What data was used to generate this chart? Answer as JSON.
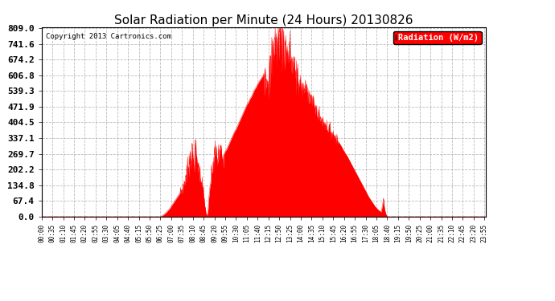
{
  "title": "Solar Radiation per Minute (24 Hours) 20130826",
  "copyright_text": "Copyright 2013 Cartronics.com",
  "legend_label": "Radiation (W/m2)",
  "background_color": "#ffffff",
  "plot_bg_color": "#ffffff",
  "fill_color": "#ff0000",
  "line_color": "#ff0000",
  "grid_color": "#aaaaaa",
  "dashed_line_color": "#ff0000",
  "yticks": [
    0.0,
    67.4,
    134.8,
    202.2,
    269.7,
    337.1,
    404.5,
    471.9,
    539.3,
    606.8,
    674.2,
    741.6,
    809.0
  ],
  "ymax": 809.0,
  "ymin": 0.0,
  "total_minutes": 1440,
  "sunrise_minute": 385,
  "sunset_minute": 1120
}
